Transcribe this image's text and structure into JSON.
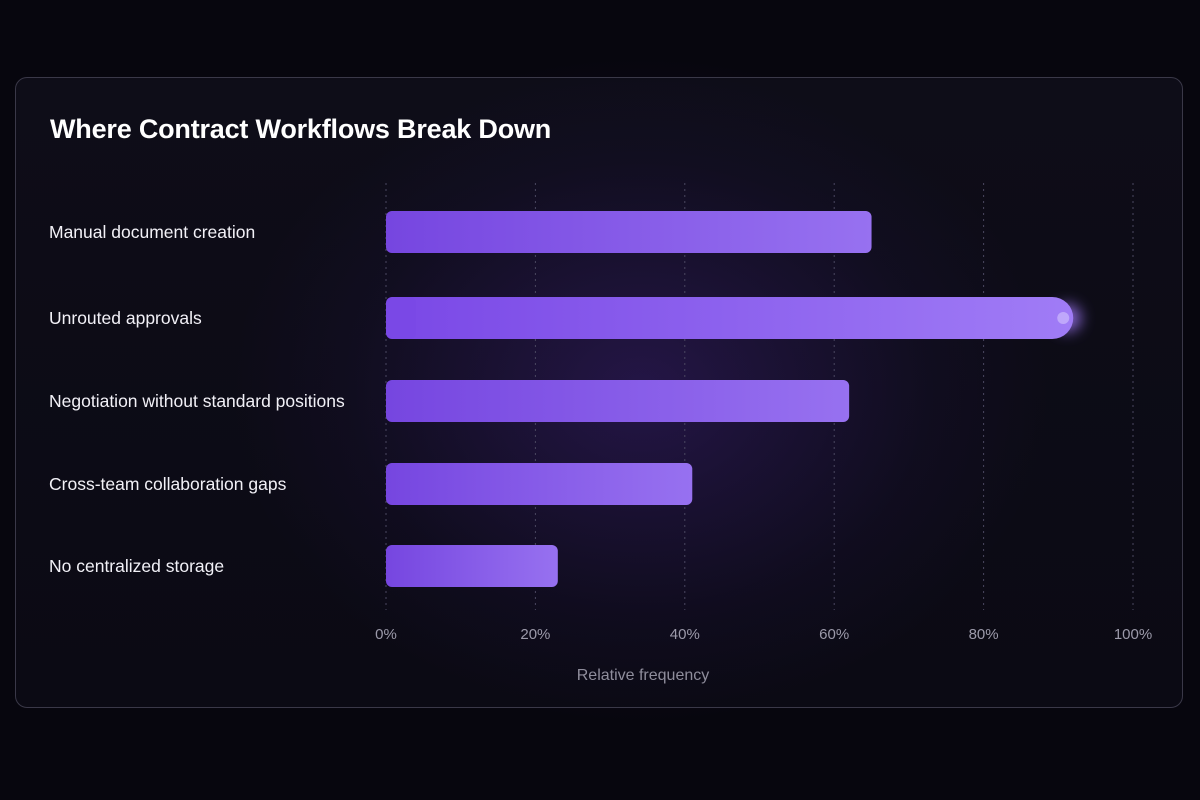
{
  "chart_data": {
    "type": "bar",
    "orientation": "horizontal",
    "title": "Where Contract Workflows Break Down",
    "xlabel": "Relative frequency",
    "ylabel": "",
    "categories": [
      "Manual document creation",
      "Unrouted approvals",
      "Negotiation without standard positions",
      "Cross-team collaboration gaps",
      "No centralized storage"
    ],
    "values": [
      65,
      92,
      62,
      41,
      23
    ],
    "xlim": [
      0,
      100
    ],
    "xticks": [
      "0%",
      "20%",
      "40%",
      "60%",
      "80%",
      "100%"
    ],
    "highlight_index": 1,
    "grid": true,
    "colors": {
      "bar": "#7b4fe6",
      "bar_light": "#9a74f2",
      "highlight_glow": "#a57cff",
      "title": "#ffffff",
      "label": "#f2f1f7",
      "tick": "#9c9aaa"
    }
  }
}
